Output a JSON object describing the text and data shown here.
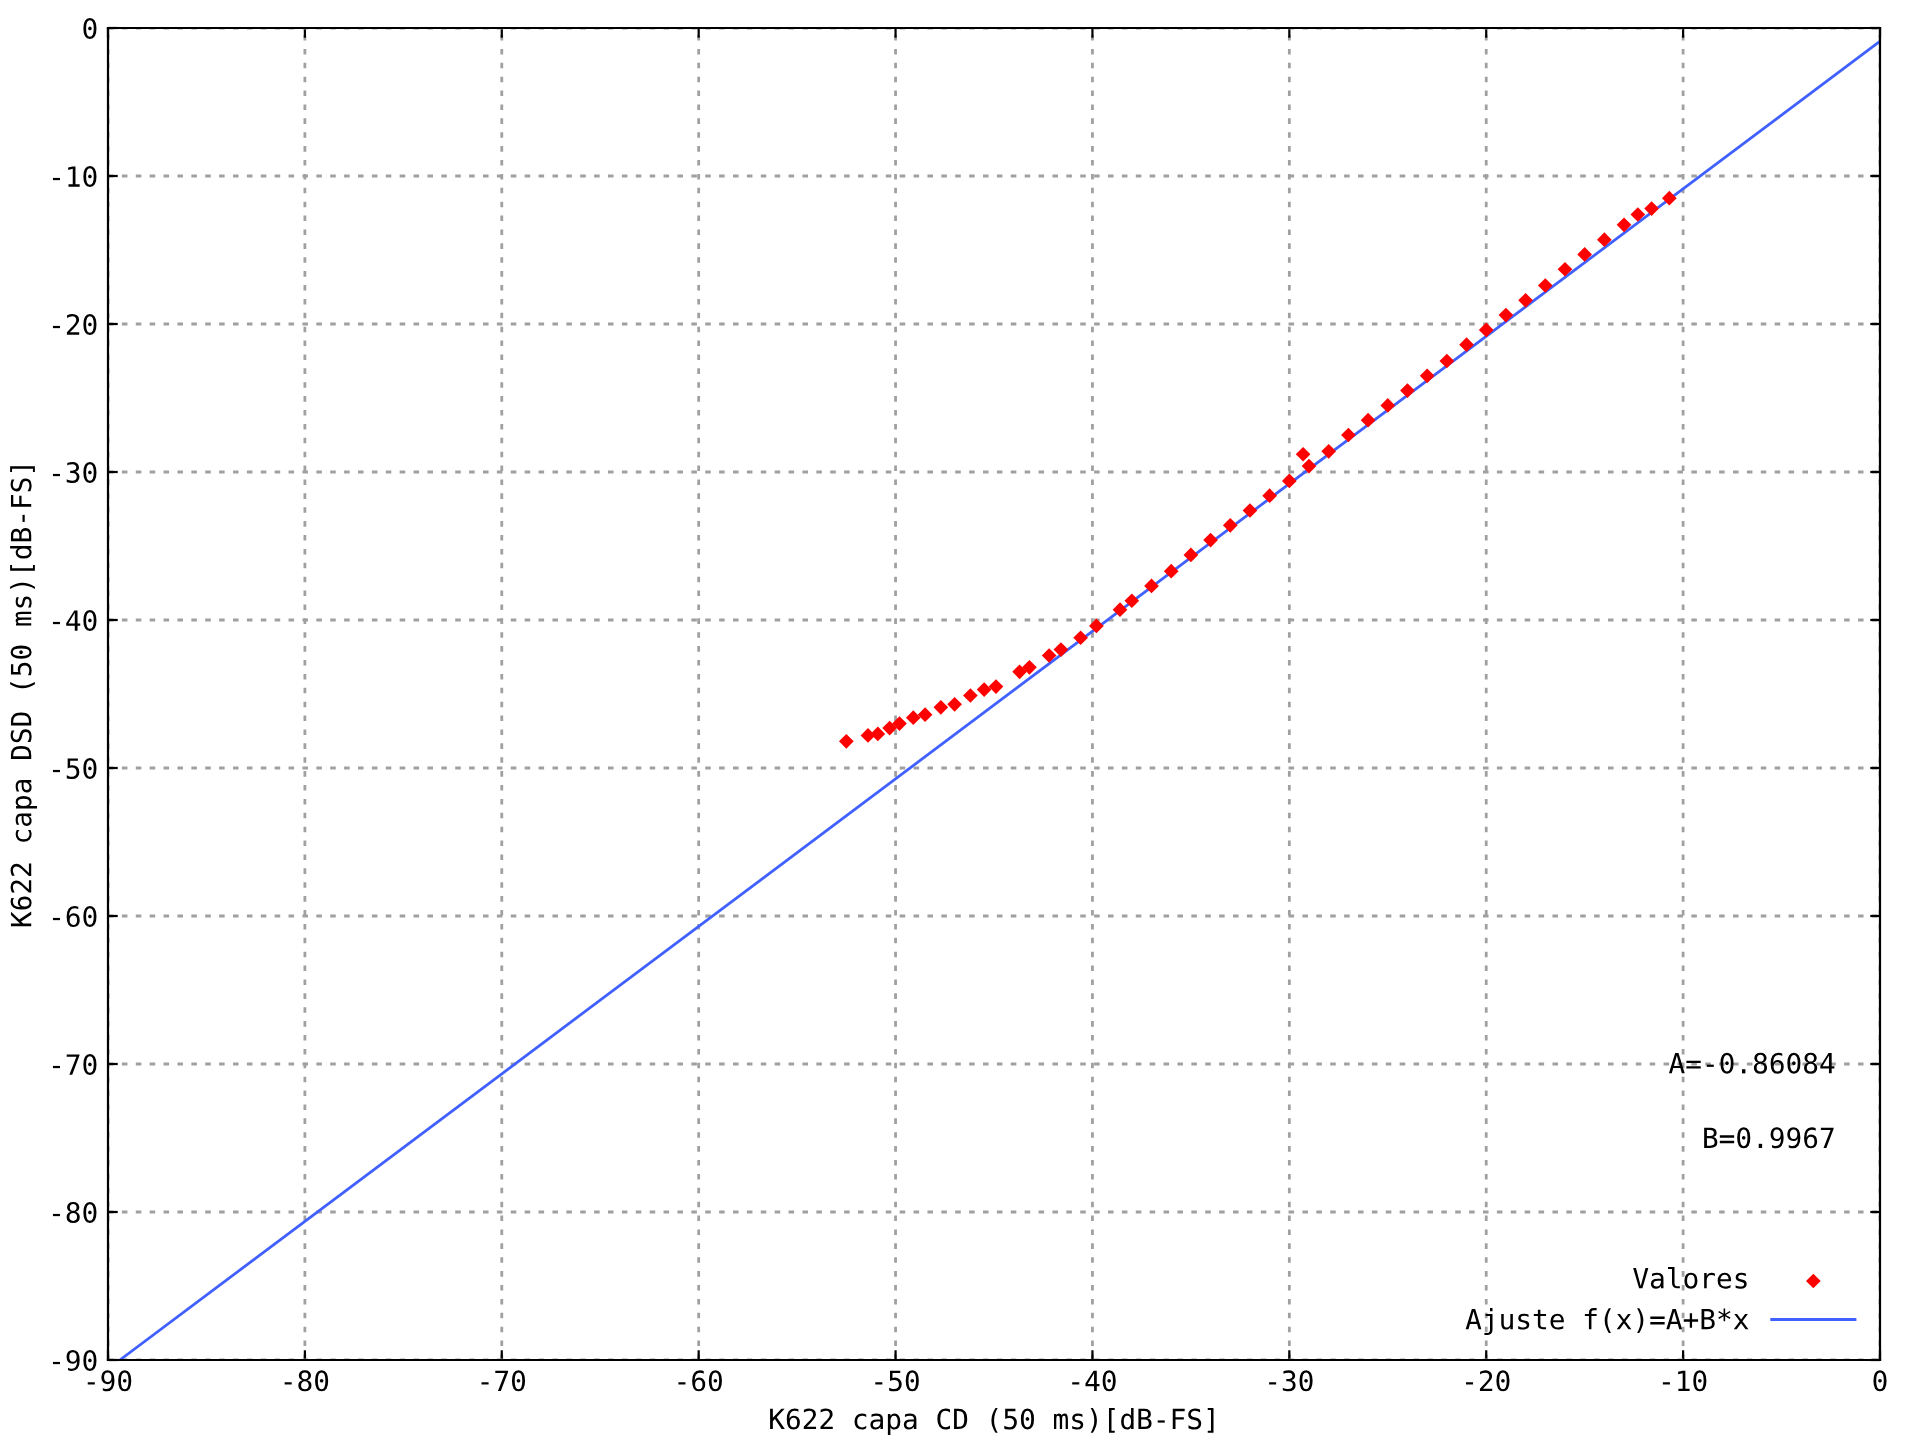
{
  "chart_data": {
    "type": "scatter",
    "xlabel": "K622 capa CD (50 ms)[dB-FS]",
    "ylabel": "K622 capa DSD (50 ms)[dB-FS]",
    "xlim": [
      -90,
      0
    ],
    "ylim": [
      -90,
      0
    ],
    "xticks": [
      -90,
      -80,
      -70,
      -60,
      -50,
      -40,
      -30,
      -20,
      -10,
      0
    ],
    "yticks": [
      -90,
      -80,
      -70,
      -60,
      -50,
      -40,
      -30,
      -20,
      -10,
      0
    ],
    "grid": true,
    "legend": "bottom right",
    "marker": "diamond",
    "annotations": [
      "A=-0.86084",
      "B=0.9967"
    ],
    "series": [
      {
        "name": "Valores",
        "color": "#ff0000",
        "x": [
          -52.5,
          -51.4,
          -50.9,
          -50.3,
          -49.8,
          -49.1,
          -48.5,
          -47.7,
          -47.0,
          -46.2,
          -45.5,
          -44.9,
          -43.7,
          -43.2,
          -42.2,
          -41.6,
          -40.6,
          -39.8,
          -38.6,
          -38,
          -37,
          -36,
          -35,
          -34,
          -33,
          -32,
          -31,
          -30,
          -29.3,
          -29,
          -28,
          -27,
          -26,
          -25,
          -24,
          -23,
          -22,
          -21,
          -20,
          -19,
          -18,
          -17,
          -16,
          -15,
          -14,
          -13,
          -12.3,
          -11.6,
          -10.7
        ],
        "values": [
          -48.2,
          -47.8,
          -47.7,
          -47.3,
          -47.0,
          -46.6,
          -46.4,
          -45.9,
          -45.7,
          -45.1,
          -44.7,
          -44.5,
          -43.5,
          -43.2,
          -42.4,
          -42.0,
          -41.2,
          -40.4,
          -39.3,
          -38.7,
          -37.7,
          -36.7,
          -35.6,
          -34.6,
          -33.6,
          -32.6,
          -31.6,
          -30.6,
          -28.8,
          -29.6,
          -28.6,
          -27.5,
          -26.5,
          -25.5,
          -24.5,
          -23.5,
          -22.5,
          -21.4,
          -20.4,
          -19.4,
          -18.4,
          -17.4,
          -16.3,
          -15.3,
          -14.3,
          -13.3,
          -12.6,
          -12.2,
          -11.5
        ]
      },
      {
        "name": "Ajuste f(x)=A+B*x",
        "type": "line",
        "color": "#4060ff",
        "marker": "none",
        "x": [
          -89.4,
          0
        ],
        "values": [
          -90,
          -0.9
        ]
      }
    ]
  }
}
